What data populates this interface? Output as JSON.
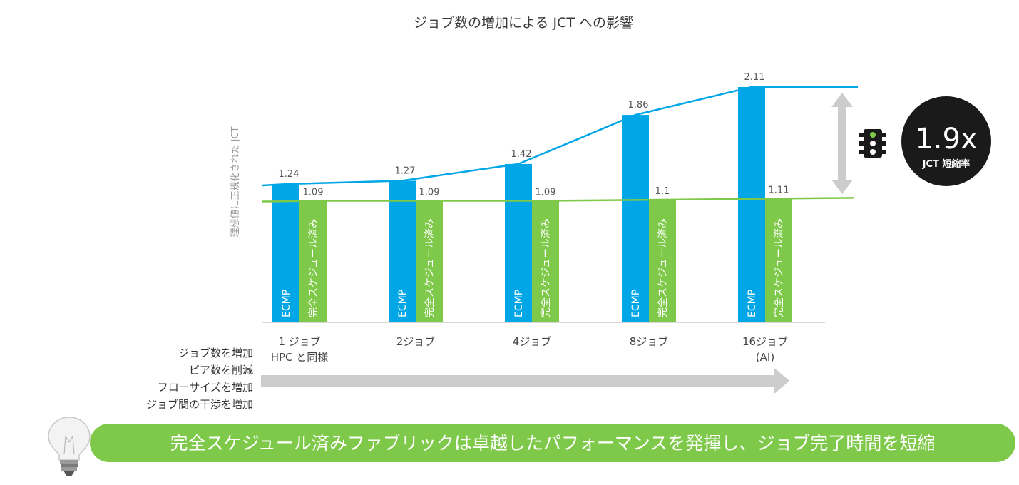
{
  "title": "ジョブ数の増加による JCT への影響",
  "chart_data": {
    "type": "bar",
    "title": "ジョブ数の増加による JCT への影響",
    "ylabel": "理想値に正規化された JCT",
    "ylim": [
      0,
      2.11
    ],
    "grid": false,
    "categories": [
      [
        "1 ジョブ",
        "HPC と同様"
      ],
      [
        "2ジョブ"
      ],
      [
        "4ジョブ"
      ],
      [
        "8ジョブ"
      ],
      [
        "16ジョブ",
        "(AI)"
      ]
    ],
    "series": [
      {
        "name": "ECMP",
        "values": [
          1.24,
          1.27,
          1.42,
          1.86,
          2.11
        ],
        "value_labels": [
          "1.24",
          "1.27",
          "1.42",
          "1.86",
          "2.11"
        ],
        "color": "#00a6e6"
      },
      {
        "name": "完全スケジュール済み",
        "values": [
          1.09,
          1.09,
          1.09,
          1.1,
          1.11
        ],
        "value_labels": [
          "1.09",
          "1.09",
          "1.09",
          "1.1",
          "1.11"
        ],
        "color": "#7ec94a"
      }
    ]
  },
  "callout": {
    "value": "1.9x",
    "label": "JCT 短縮率",
    "icon": "traffic-light-icon"
  },
  "side_labels": [
    "ジョブ数を増加",
    "ピア数を削減",
    "フローサイズを増加",
    "ジョブ間の干渉を増加"
  ],
  "banner": {
    "text": "完全スケジュール済みファブリックは卓越したパフォーマンスを発揮し、ジョブ完了時間を短縮",
    "icon": "light-bulb-icon",
    "color": "#7ec94a"
  },
  "colors": {
    "ecmp": "#00a6e6",
    "scheduled": "#7ec94a",
    "arrow": "#cccccc",
    "badge": "#1a1a1a"
  }
}
